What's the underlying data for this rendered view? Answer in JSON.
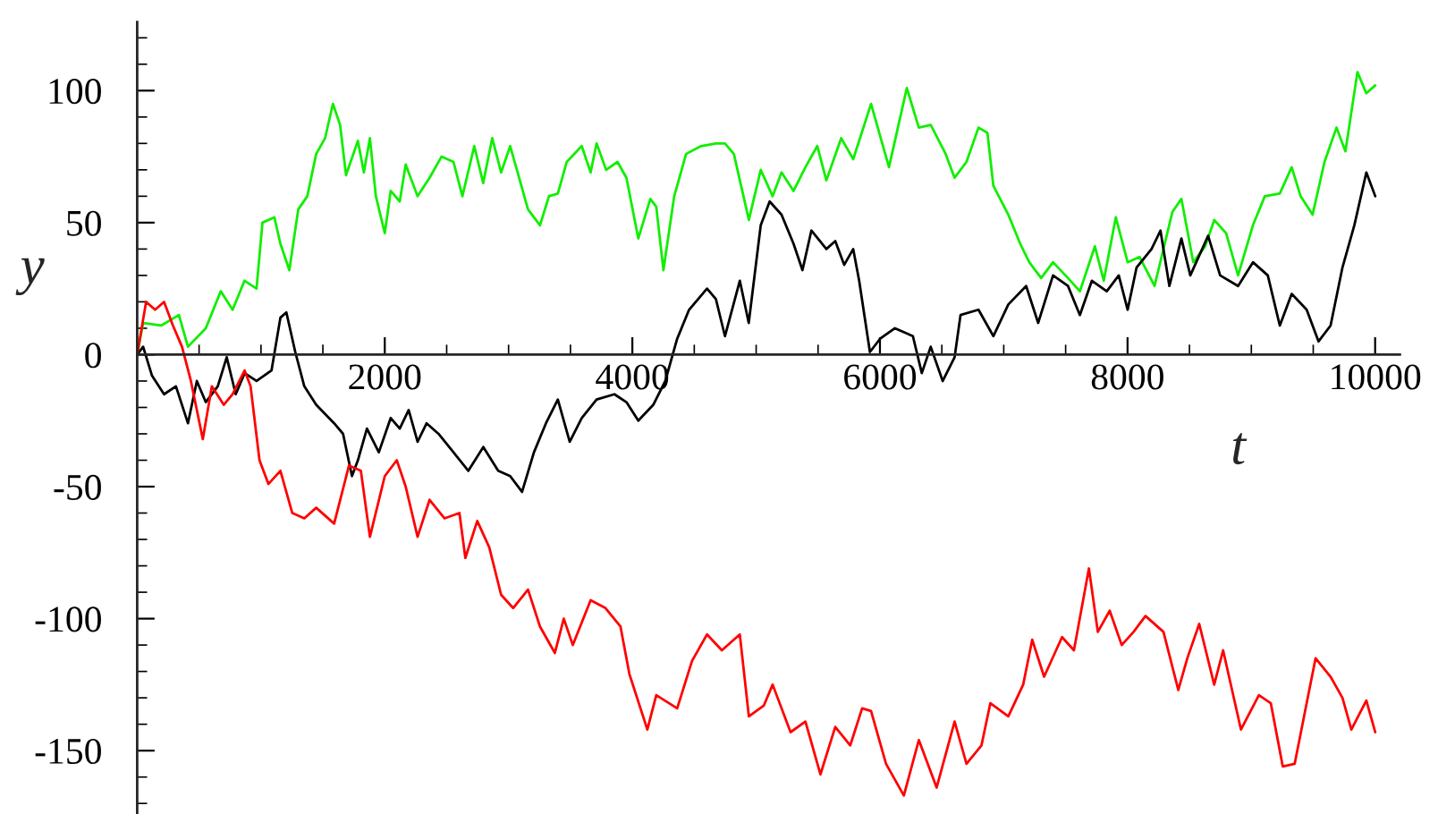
{
  "chart_data": {
    "type": "line",
    "xlabel": "t",
    "ylabel": "y",
    "xlim": [
      0,
      10200
    ],
    "ylim": [
      -174,
      126
    ],
    "grid": false,
    "legend": false,
    "marker": "none",
    "line_style": "solid",
    "xticks": [
      {
        "value": 500,
        "label": null
      },
      {
        "value": 1000,
        "label": null
      },
      {
        "value": 1500,
        "label": null
      },
      2000,
      {
        "value": 2500,
        "label": null
      },
      {
        "value": 3000,
        "label": null
      },
      {
        "value": 3500,
        "label": null
      },
      4000,
      {
        "value": 4500,
        "label": null
      },
      {
        "value": 5000,
        "label": null
      },
      {
        "value": 5500,
        "label": null
      },
      6000,
      {
        "value": 6500,
        "label": null
      },
      {
        "value": 7000,
        "label": null
      },
      {
        "value": 7500,
        "label": null
      },
      8000,
      {
        "value": 8500,
        "label": null
      },
      {
        "value": 9000,
        "label": null
      },
      {
        "value": 9500,
        "label": null
      },
      10000
    ],
    "yticks": [
      {
        "value": -170,
        "label": null
      },
      {
        "value": -160,
        "label": null
      },
      -150,
      {
        "value": -140,
        "label": null
      },
      {
        "value": -130,
        "label": null
      },
      {
        "value": -120,
        "label": null
      },
      {
        "value": -110,
        "label": null
      },
      -100,
      {
        "value": -90,
        "label": null
      },
      {
        "value": -80,
        "label": null
      },
      {
        "value": -70,
        "label": null
      },
      {
        "value": -60,
        "label": null
      },
      -50,
      {
        "value": -40,
        "label": null
      },
      {
        "value": -30,
        "label": null
      },
      {
        "value": -20,
        "label": null
      },
      {
        "value": -10,
        "label": null
      },
      0,
      {
        "value": 10,
        "label": null
      },
      {
        "value": 20,
        "label": null
      },
      {
        "value": 30,
        "label": null
      },
      {
        "value": 40,
        "label": null
      },
      50,
      {
        "value": 60,
        "label": null
      },
      {
        "value": 70,
        "label": null
      },
      {
        "value": 80,
        "label": null
      },
      {
        "value": 90,
        "label": null
      },
      100,
      {
        "value": 110,
        "label": null
      },
      {
        "value": 120,
        "label": null
      }
    ],
    "series": [
      {
        "color": "#11ee00",
        "x": [
          0,
          48,
          193,
          337,
          410,
          554,
          675,
          771,
          867,
          964,
          1012,
          1108,
          1157,
          1229,
          1301,
          1374,
          1446,
          1518,
          1581,
          1639,
          1687,
          1783,
          1831,
          1880,
          1928,
          2000,
          2048,
          2121,
          2169,
          2265,
          2362,
          2458,
          2555,
          2627,
          2723,
          2795,
          2868,
          2940,
          3013,
          3085,
          3157,
          3254,
          3326,
          3398,
          3470,
          3591,
          3663,
          3711,
          3788,
          3880,
          3952,
          4048,
          4145,
          4193,
          4251,
          4338,
          4434,
          4555,
          4675,
          4748,
          4820,
          4941,
          5037,
          5133,
          5205,
          5302,
          5398,
          5494,
          5567,
          5687,
          5784,
          5928,
          6073,
          6217,
          6314,
          6410,
          6531,
          6603,
          6699,
          6796,
          6868,
          6916,
          7037,
          7133,
          7206,
          7302,
          7398,
          7519,
          7615,
          7736,
          7808,
          7905,
          8001,
          8097,
          8218,
          8362,
          8435,
          8531,
          8627,
          8700,
          8796,
          8893,
          9013,
          9109,
          9230,
          9326,
          9398,
          9495,
          9591,
          9688,
          9760,
          9857,
          9929,
          10001
        ],
        "values": [
          0,
          12,
          11,
          15,
          3,
          10,
          24,
          17,
          28,
          25,
          50,
          52,
          42,
          32,
          55,
          60,
          76,
          82,
          95,
          87,
          68,
          81,
          69,
          82,
          60,
          46,
          62,
          58,
          72,
          60,
          67,
          75,
          73,
          60,
          79,
          65,
          82,
          69,
          79,
          67,
          55,
          49,
          60,
          61,
          73,
          79,
          69,
          80,
          70,
          73,
          67,
          44,
          59,
          56,
          32,
          60,
          76,
          79,
          80,
          80,
          76,
          51,
          70,
          60,
          69,
          62,
          71,
          79,
          66,
          82,
          74,
          95,
          71,
          101,
          86,
          87,
          76,
          67,
          73,
          86,
          84,
          64,
          53,
          42,
          35,
          29,
          35,
          29,
          24,
          41,
          28,
          52,
          35,
          37,
          26,
          54,
          59,
          35,
          41,
          51,
          46,
          30,
          49,
          60,
          61,
          71,
          60,
          53,
          73,
          86,
          77,
          107,
          99,
          102
        ]
      },
      {
        "color": "#000000",
        "x": [
          0,
          48,
          120,
          217,
          313,
          410,
          482,
          554,
          651,
          723,
          796,
          868,
          964,
          1085,
          1157,
          1205,
          1277,
          1350,
          1446,
          1591,
          1663,
          1735,
          1783,
          1856,
          1952,
          2048,
          2121,
          2193,
          2265,
          2338,
          2434,
          2555,
          2675,
          2796,
          2916,
          3013,
          3109,
          3205,
          3302,
          3398,
          3494,
          3591,
          3711,
          3855,
          3952,
          4048,
          4169,
          4266,
          4362,
          4458,
          4603,
          4675,
          4748,
          4868,
          4940,
          5037,
          5109,
          5205,
          5302,
          5374,
          5446,
          5567,
          5639,
          5711,
          5784,
          5832,
          5919,
          6001,
          6121,
          6266,
          6338,
          6410,
          6507,
          6603,
          6651,
          6796,
          6916,
          7037,
          7181,
          7278,
          7398,
          7519,
          7615,
          7712,
          7832,
          7929,
          8001,
          8073,
          8194,
          8266,
          8338,
          8435,
          8507,
          8651,
          8748,
          8893,
          9013,
          9133,
          9230,
          9326,
          9447,
          9543,
          9640,
          9736,
          9832,
          9929,
          10001
        ],
        "values": [
          0,
          3,
          -8,
          -15,
          -12,
          -26,
          -10,
          -18,
          -12,
          -1,
          -15,
          -7,
          -10,
          -6,
          14,
          16,
          1,
          -12,
          -19,
          -26,
          -30,
          -46,
          -40,
          -28,
          -37,
          -24,
          -28,
          -21,
          -33,
          -26,
          -30,
          -37,
          -44,
          -35,
          -44,
          -46,
          -52,
          -37,
          -26,
          -17,
          -33,
          -24,
          -17,
          -15,
          -18,
          -25,
          -19,
          -10,
          6,
          17,
          25,
          21,
          7,
          28,
          12,
          49,
          58,
          53,
          42,
          32,
          47,
          40,
          43,
          34,
          40,
          28,
          1,
          6,
          10,
          7,
          -7,
          3,
          -10,
          -1,
          15,
          17,
          7,
          19,
          26,
          12,
          30,
          26,
          15,
          28,
          24,
          30,
          17,
          33,
          40,
          47,
          26,
          44,
          30,
          45,
          30,
          26,
          35,
          30,
          11,
          23,
          17,
          5,
          11,
          33,
          49,
          69,
          60
        ]
      },
      {
        "color": "#ff0000",
        "x": [
          0,
          72,
          145,
          217,
          289,
          362,
          434,
          530,
          603,
          699,
          771,
          868,
          916,
          988,
          1060,
          1157,
          1253,
          1350,
          1446,
          1591,
          1711,
          1807,
          1880,
          2000,
          2097,
          2169,
          2265,
          2362,
          2482,
          2603,
          2651,
          2747,
          2844,
          2940,
          3037,
          3157,
          3254,
          3374,
          3446,
          3519,
          3663,
          3783,
          3904,
          3976,
          4121,
          4193,
          4362,
          4482,
          4603,
          4723,
          4868,
          4941,
          5061,
          5133,
          5278,
          5398,
          5519,
          5639,
          5760,
          5856,
          5928,
          6049,
          6193,
          6314,
          6458,
          6603,
          6699,
          6820,
          6892,
          7037,
          7157,
          7230,
          7326,
          7471,
          7567,
          7688,
          7760,
          7856,
          7953,
          8049,
          8145,
          8290,
          8410,
          8483,
          8579,
          8700,
          8772,
          8916,
          9061,
          9157,
          9254,
          9350,
          9447,
          9519,
          9640,
          9736,
          9808,
          9929,
          10001
        ],
        "values": [
          0,
          20,
          17,
          20,
          11,
          3,
          -10,
          -32,
          -12,
          -19,
          -15,
          -6,
          -12,
          -40,
          -49,
          -44,
          -60,
          -62,
          -58,
          -64,
          -42,
          -44,
          -69,
          -46,
          -40,
          -50,
          -69,
          -55,
          -62,
          -60,
          -77,
          -63,
          -73,
          -91,
          -96,
          -89,
          -103,
          -113,
          -100,
          -110,
          -93,
          -96,
          -103,
          -121,
          -142,
          -129,
          -134,
          -116,
          -106,
          -112,
          -106,
          -137,
          -133,
          -125,
          -143,
          -139,
          -159,
          -141,
          -148,
          -134,
          -135,
          -155,
          -167,
          -146,
          -164,
          -139,
          -155,
          -148,
          -132,
          -137,
          -125,
          -108,
          -122,
          -107,
          -112,
          -81,
          -105,
          -97,
          -110,
          -105,
          -99,
          -105,
          -127,
          -115,
          -102,
          -125,
          -112,
          -142,
          -129,
          -132,
          -156,
          -155,
          -132,
          -115,
          -122,
          -130,
          -142,
          -131,
          -143
        ]
      }
    ]
  }
}
